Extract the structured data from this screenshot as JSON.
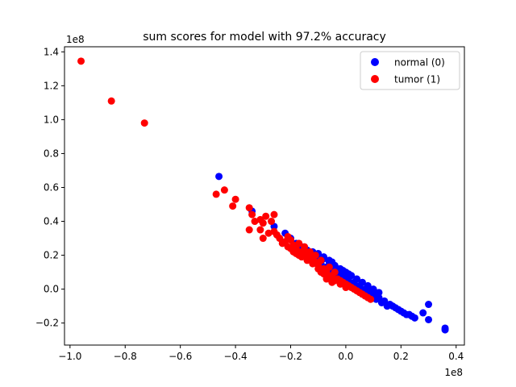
{
  "chart_data": {
    "type": "scatter",
    "title": "sum scores for model with 97.2% accuracy",
    "xlabel": "",
    "ylabel": "",
    "x_offset_label": "1e8",
    "y_offset_label": "1e8",
    "xlim": [
      -1.02,
      0.43
    ],
    "ylim": [
      -0.33,
      1.43
    ],
    "x_ticks": [
      -1.0,
      -0.8,
      -0.6,
      -0.4,
      -0.2,
      0.0,
      0.2,
      0.4
    ],
    "x_tick_labels": [
      "−1.0",
      "−0.8",
      "−0.6",
      "−0.4",
      "−0.2",
      "0.0",
      "0.2",
      "0.4"
    ],
    "y_ticks": [
      -0.2,
      0.0,
      0.2,
      0.4,
      0.6,
      0.8,
      1.0,
      1.2,
      1.4
    ],
    "y_tick_labels": [
      "−0.2",
      "0.0",
      "0.2",
      "0.4",
      "0.6",
      "0.8",
      "1.0",
      "1.2",
      "1.4"
    ],
    "grid": false,
    "legend_position": "top-right",
    "series": [
      {
        "name": "normal (0)",
        "color": "#0000ff",
        "points": [
          [
            -0.46,
            0.665
          ],
          [
            -0.34,
            0.46
          ],
          [
            -0.26,
            0.37
          ],
          [
            -0.22,
            0.33
          ],
          [
            -0.2,
            0.3
          ],
          [
            -0.18,
            0.27
          ],
          [
            -0.16,
            0.25
          ],
          [
            -0.14,
            0.23
          ],
          [
            -0.12,
            0.21
          ],
          [
            -0.1,
            0.19
          ],
          [
            -0.08,
            0.18
          ],
          [
            -0.06,
            0.16
          ],
          [
            -0.04,
            0.14
          ],
          [
            -0.02,
            0.12
          ],
          [
            0.0,
            0.1
          ],
          [
            -0.15,
            0.2
          ],
          [
            -0.13,
            0.2
          ],
          [
            -0.11,
            0.17
          ],
          [
            -0.09,
            0.15
          ],
          [
            -0.07,
            0.13
          ],
          [
            -0.05,
            0.11
          ],
          [
            -0.03,
            0.09
          ],
          [
            -0.01,
            0.07
          ],
          [
            0.01,
            0.05
          ],
          [
            0.03,
            0.04
          ],
          [
            0.05,
            0.02
          ],
          [
            0.07,
            0.0
          ],
          [
            0.09,
            -0.01
          ],
          [
            0.1,
            -0.03
          ],
          [
            0.12,
            -0.05
          ],
          [
            0.14,
            -0.07
          ],
          [
            0.16,
            -0.09
          ],
          [
            0.18,
            -0.11
          ],
          [
            0.2,
            -0.13
          ],
          [
            0.22,
            -0.15
          ],
          [
            0.25,
            -0.17
          ],
          [
            0.28,
            -0.14
          ],
          [
            0.3,
            -0.18
          ],
          [
            0.3,
            -0.09
          ],
          [
            0.36,
            -0.23
          ],
          [
            0.36,
            -0.24
          ],
          [
            0.12,
            -0.02
          ],
          [
            0.1,
            0.0
          ],
          [
            0.08,
            0.02
          ],
          [
            0.06,
            0.04
          ],
          [
            0.04,
            0.06
          ],
          [
            0.02,
            0.08
          ],
          [
            -0.02,
            0.1
          ],
          [
            0.0,
            0.06
          ],
          [
            0.02,
            0.03
          ],
          [
            0.04,
            0.01
          ],
          [
            0.06,
            -0.01
          ],
          [
            0.08,
            -0.03
          ],
          [
            0.11,
            -0.06
          ],
          [
            0.13,
            -0.08
          ],
          [
            0.15,
            -0.1
          ],
          [
            0.17,
            -0.1
          ],
          [
            0.19,
            -0.12
          ],
          [
            -0.1,
            0.21
          ],
          [
            -0.08,
            0.19
          ],
          [
            -0.06,
            0.17
          ],
          [
            -0.05,
            0.16
          ],
          [
            -0.03,
            0.12
          ],
          [
            -0.01,
            0.11
          ],
          [
            0.01,
            0.09
          ],
          [
            -0.1,
            0.19
          ],
          [
            -0.12,
            0.22
          ],
          [
            0.24,
            -0.16
          ],
          [
            0.21,
            -0.14
          ],
          [
            0.23,
            -0.15
          ]
        ]
      },
      {
        "name": "tumor (1)",
        "color": "#ff0000",
        "points": [
          [
            -0.96,
            1.345
          ],
          [
            -0.85,
            1.11
          ],
          [
            -0.73,
            0.98
          ],
          [
            -0.47,
            0.56
          ],
          [
            -0.44,
            0.585
          ],
          [
            -0.41,
            0.49
          ],
          [
            -0.4,
            0.53
          ],
          [
            -0.35,
            0.48
          ],
          [
            -0.34,
            0.44
          ],
          [
            -0.33,
            0.4
          ],
          [
            -0.31,
            0.41
          ],
          [
            -0.3,
            0.39
          ],
          [
            -0.29,
            0.43
          ],
          [
            -0.26,
            0.44
          ],
          [
            -0.27,
            0.4
          ],
          [
            -0.35,
            0.35
          ],
          [
            -0.31,
            0.35
          ],
          [
            -0.3,
            0.3
          ],
          [
            -0.28,
            0.33
          ],
          [
            -0.26,
            0.34
          ],
          [
            -0.25,
            0.32
          ],
          [
            -0.24,
            0.3
          ],
          [
            -0.22,
            0.28
          ],
          [
            -0.21,
            0.31
          ],
          [
            -0.2,
            0.29
          ],
          [
            -0.23,
            0.27
          ],
          [
            -0.19,
            0.26
          ],
          [
            -0.18,
            0.24
          ],
          [
            -0.17,
            0.27
          ],
          [
            -0.16,
            0.22
          ],
          [
            -0.15,
            0.23
          ],
          [
            -0.14,
            0.2
          ],
          [
            -0.13,
            0.18
          ],
          [
            -0.12,
            0.19
          ],
          [
            -0.11,
            0.16
          ],
          [
            -0.1,
            0.14
          ],
          [
            -0.09,
            0.17
          ],
          [
            -0.08,
            0.12
          ],
          [
            -0.07,
            0.1
          ],
          [
            -0.06,
            0.13
          ],
          [
            -0.05,
            0.08
          ],
          [
            -0.04,
            0.1
          ],
          [
            -0.03,
            0.06
          ],
          [
            -0.02,
            0.05
          ],
          [
            -0.01,
            0.04
          ],
          [
            0.0,
            0.03
          ],
          [
            0.01,
            0.02
          ],
          [
            0.02,
            0.01
          ],
          [
            0.03,
            0.0
          ],
          [
            0.04,
            -0.01
          ],
          [
            0.05,
            -0.02
          ],
          [
            0.06,
            -0.03
          ],
          [
            0.07,
            -0.04
          ],
          [
            0.08,
            -0.05
          ],
          [
            0.09,
            -0.06
          ],
          [
            -0.2,
            0.24
          ],
          [
            -0.18,
            0.21
          ],
          [
            -0.16,
            0.19
          ],
          [
            -0.14,
            0.17
          ],
          [
            -0.12,
            0.15
          ],
          [
            -0.1,
            0.12
          ],
          [
            -0.08,
            0.09
          ],
          [
            -0.06,
            0.07
          ],
          [
            -0.04,
            0.05
          ],
          [
            -0.02,
            0.03
          ],
          [
            0.0,
            0.01
          ],
          [
            -0.15,
            0.25
          ],
          [
            -0.13,
            0.22
          ],
          [
            -0.11,
            0.2
          ],
          [
            -0.09,
            0.1
          ],
          [
            -0.07,
            0.06
          ],
          [
            -0.05,
            0.04
          ],
          [
            -0.17,
            0.2
          ],
          [
            -0.19,
            0.22
          ],
          [
            -0.21,
            0.25
          ]
        ]
      }
    ]
  }
}
